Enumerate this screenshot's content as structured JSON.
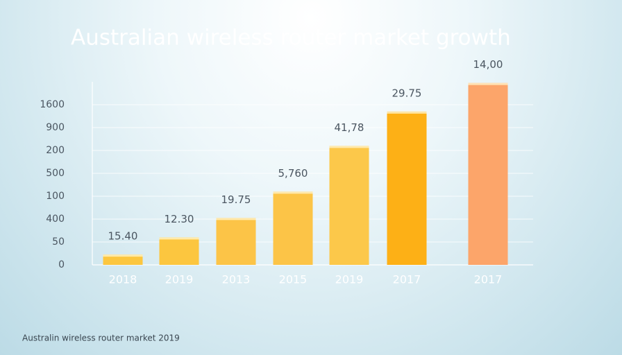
{
  "chart_data": {
    "type": "bar",
    "title": "Australian wireless router market growth",
    "footnote": "Australin wireless router market 2019",
    "categories": [
      "2018",
      "2019",
      "2013",
      "2015",
      "2019",
      "2017",
      "2017"
    ],
    "values": [
      0.45,
      1.2,
      2.05,
      3.2,
      5.2,
      6.7,
      7.95
    ],
    "value_texts": [
      "15.40",
      "12.30",
      "19.75",
      "5,760",
      "41,78",
      "29.75",
      "14,00"
    ],
    "colors": [
      "#fcc63f",
      "#fcc63f",
      "#fcc447",
      "#fcc447",
      "#fcc84a",
      "#fdb016",
      "#fca56a"
    ],
    "ylim": [
      0,
      8
    ],
    "yticks": [
      {
        "value": 0,
        "label": "0"
      },
      {
        "value": 1,
        "label": "50"
      },
      {
        "value": 2,
        "label": "400"
      },
      {
        "value": 3,
        "label": "100"
      },
      {
        "value": 4,
        "label": "500"
      },
      {
        "value": 5,
        "label": "200"
      },
      {
        "value": 6,
        "label": "900"
      },
      {
        "value": 7,
        "label": "1600"
      }
    ],
    "grid": true
  }
}
